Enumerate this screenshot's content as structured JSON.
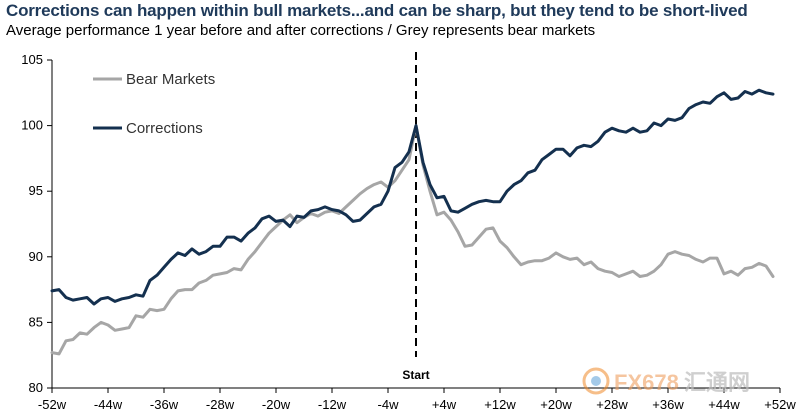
{
  "title": "Corrections can happen within bull markets...and can be sharp, but they tend to be short-lived",
  "subtitle": "Average performance 1 year before and after corrections / Grey represents bear markets",
  "watermark": {
    "brand": "FX678",
    "cn": "汇通网"
  },
  "chart_data": {
    "type": "line",
    "title": "Corrections can happen within bull markets...and can be sharp, but they tend to be short-lived",
    "subtitle": "Average performance 1 year before and after corrections / Grey represents bear markets",
    "xlabel": "",
    "ylabel": "",
    "ylim": [
      80,
      105
    ],
    "xlim": [
      -52,
      52
    ],
    "yticks": [
      80,
      85,
      90,
      95,
      100,
      105
    ],
    "xticks": [
      -52,
      -44,
      -36,
      -28,
      -20,
      -12,
      -4,
      4,
      12,
      20,
      28,
      36,
      44,
      52
    ],
    "xtick_labels": [
      "-52w",
      "-44w",
      "-36w",
      "-28w",
      "-20w",
      "-12w",
      "-4w",
      "+4w",
      "+12w",
      "+20w",
      "+28w",
      "+36w",
      "+44w",
      "+52w"
    ],
    "vline": {
      "x": 0,
      "label": "Start"
    },
    "grid": false,
    "legend": "top-left",
    "series": [
      {
        "name": "Bear Markets",
        "color": "#a6a6a6",
        "points": [
          [
            -52,
            82.7
          ],
          [
            -51,
            82.6
          ],
          [
            -50,
            83.6
          ],
          [
            -49,
            83.7
          ],
          [
            -48,
            84.2
          ],
          [
            -47,
            84.1
          ],
          [
            -46,
            84.6
          ],
          [
            -45,
            85.0
          ],
          [
            -44,
            84.8
          ],
          [
            -43,
            84.4
          ],
          [
            -42,
            84.5
          ],
          [
            -41,
            84.6
          ],
          [
            -40,
            85.5
          ],
          [
            -39,
            85.4
          ],
          [
            -38,
            86.0
          ],
          [
            -37,
            85.9
          ],
          [
            -36,
            86.0
          ],
          [
            -35,
            86.8
          ],
          [
            -34,
            87.4
          ],
          [
            -33,
            87.5
          ],
          [
            -32,
            87.5
          ],
          [
            -31,
            88.0
          ],
          [
            -30,
            88.2
          ],
          [
            -29,
            88.6
          ],
          [
            -28,
            88.7
          ],
          [
            -27,
            88.8
          ],
          [
            -26,
            89.1
          ],
          [
            -25,
            89.0
          ],
          [
            -24,
            89.8
          ],
          [
            -23,
            90.4
          ],
          [
            -22,
            91.1
          ],
          [
            -21,
            91.8
          ],
          [
            -20,
            92.3
          ],
          [
            -19,
            92.8
          ],
          [
            -18,
            93.2
          ],
          [
            -17,
            92.6
          ],
          [
            -16,
            93.0
          ],
          [
            -15,
            93.3
          ],
          [
            -14,
            93.1
          ],
          [
            -13,
            93.4
          ],
          [
            -12,
            93.5
          ],
          [
            -11,
            93.3
          ],
          [
            -10,
            93.8
          ],
          [
            -9,
            94.3
          ],
          [
            -8,
            94.8
          ],
          [
            -7,
            95.2
          ],
          [
            -6,
            95.5
          ],
          [
            -5,
            95.7
          ],
          [
            -4,
            95.3
          ],
          [
            -3,
            95.8
          ],
          [
            -2,
            96.6
          ],
          [
            -1,
            97.4
          ],
          [
            0,
            100.0
          ],
          [
            1,
            97.0
          ],
          [
            2,
            95.0
          ],
          [
            3,
            93.2
          ],
          [
            4,
            93.4
          ],
          [
            5,
            92.8
          ],
          [
            6,
            91.9
          ],
          [
            7,
            90.8
          ],
          [
            8,
            90.9
          ],
          [
            9,
            91.5
          ],
          [
            10,
            92.1
          ],
          [
            11,
            92.2
          ],
          [
            12,
            91.2
          ],
          [
            13,
            90.7
          ],
          [
            14,
            90.0
          ],
          [
            15,
            89.4
          ],
          [
            16,
            89.6
          ],
          [
            17,
            89.7
          ],
          [
            18,
            89.7
          ],
          [
            19,
            89.9
          ],
          [
            20,
            90.3
          ],
          [
            21,
            90.0
          ],
          [
            22,
            89.8
          ],
          [
            23,
            89.9
          ],
          [
            24,
            89.4
          ],
          [
            25,
            89.6
          ],
          [
            26,
            89.1
          ],
          [
            27,
            88.9
          ],
          [
            28,
            88.8
          ],
          [
            29,
            88.5
          ],
          [
            30,
            88.7
          ],
          [
            31,
            88.9
          ],
          [
            32,
            88.5
          ],
          [
            33,
            88.6
          ],
          [
            34,
            88.9
          ],
          [
            35,
            89.4
          ],
          [
            36,
            90.2
          ],
          [
            37,
            90.4
          ],
          [
            38,
            90.2
          ],
          [
            39,
            90.1
          ],
          [
            40,
            89.8
          ],
          [
            41,
            89.6
          ],
          [
            42,
            89.9
          ],
          [
            43,
            89.9
          ],
          [
            44,
            88.7
          ],
          [
            45,
            88.9
          ],
          [
            46,
            88.6
          ],
          [
            47,
            89.1
          ],
          [
            48,
            89.2
          ],
          [
            49,
            89.5
          ],
          [
            50,
            89.3
          ],
          [
            51,
            88.5
          ]
        ]
      },
      {
        "name": "Corrections",
        "color": "#14304f",
        "points": [
          [
            -52,
            87.4
          ],
          [
            -51,
            87.5
          ],
          [
            -50,
            86.9
          ],
          [
            -49,
            86.7
          ],
          [
            -48,
            86.8
          ],
          [
            -47,
            86.9
          ],
          [
            -46,
            86.4
          ],
          [
            -45,
            86.8
          ],
          [
            -44,
            86.9
          ],
          [
            -43,
            86.6
          ],
          [
            -42,
            86.8
          ],
          [
            -41,
            86.9
          ],
          [
            -40,
            87.1
          ],
          [
            -39,
            87.0
          ],
          [
            -38,
            88.2
          ],
          [
            -37,
            88.6
          ],
          [
            -36,
            89.2
          ],
          [
            -35,
            89.8
          ],
          [
            -34,
            90.3
          ],
          [
            -33,
            90.1
          ],
          [
            -32,
            90.6
          ],
          [
            -31,
            90.2
          ],
          [
            -30,
            90.4
          ],
          [
            -29,
            90.8
          ],
          [
            -28,
            90.8
          ],
          [
            -27,
            91.5
          ],
          [
            -26,
            91.5
          ],
          [
            -25,
            91.2
          ],
          [
            -24,
            91.8
          ],
          [
            -23,
            92.2
          ],
          [
            -22,
            92.9
          ],
          [
            -21,
            93.1
          ],
          [
            -20,
            92.7
          ],
          [
            -19,
            92.8
          ],
          [
            -18,
            92.3
          ],
          [
            -17,
            93.1
          ],
          [
            -16,
            93.0
          ],
          [
            -15,
            93.5
          ],
          [
            -14,
            93.6
          ],
          [
            -13,
            93.8
          ],
          [
            -12,
            93.6
          ],
          [
            -11,
            93.5
          ],
          [
            -10,
            93.2
          ],
          [
            -9,
            92.7
          ],
          [
            -8,
            92.8
          ],
          [
            -7,
            93.3
          ],
          [
            -6,
            93.8
          ],
          [
            -5,
            94.0
          ],
          [
            -4,
            95.0
          ],
          [
            -3,
            96.8
          ],
          [
            -2,
            97.2
          ],
          [
            -1,
            98.0
          ],
          [
            0,
            100.0
          ],
          [
            1,
            97.2
          ],
          [
            2,
            95.5
          ],
          [
            3,
            94.5
          ],
          [
            4,
            94.6
          ],
          [
            5,
            93.5
          ],
          [
            6,
            93.4
          ],
          [
            7,
            93.7
          ],
          [
            8,
            94.0
          ],
          [
            9,
            94.2
          ],
          [
            10,
            94.3
          ],
          [
            11,
            94.2
          ],
          [
            12,
            94.2
          ],
          [
            13,
            95.0
          ],
          [
            14,
            95.5
          ],
          [
            15,
            95.8
          ],
          [
            16,
            96.4
          ],
          [
            17,
            96.6
          ],
          [
            18,
            97.4
          ],
          [
            19,
            97.8
          ],
          [
            20,
            98.2
          ],
          [
            21,
            98.2
          ],
          [
            22,
            97.7
          ],
          [
            23,
            98.3
          ],
          [
            24,
            98.5
          ],
          [
            25,
            98.4
          ],
          [
            26,
            98.8
          ],
          [
            27,
            99.5
          ],
          [
            28,
            99.8
          ],
          [
            29,
            99.6
          ],
          [
            30,
            99.5
          ],
          [
            31,
            99.8
          ],
          [
            32,
            99.5
          ],
          [
            33,
            99.6
          ],
          [
            34,
            100.2
          ],
          [
            35,
            100.0
          ],
          [
            36,
            100.5
          ],
          [
            37,
            100.4
          ],
          [
            38,
            100.6
          ],
          [
            39,
            101.3
          ],
          [
            40,
            101.6
          ],
          [
            41,
            101.8
          ],
          [
            42,
            101.7
          ],
          [
            43,
            102.2
          ],
          [
            44,
            102.5
          ],
          [
            45,
            102.0
          ],
          [
            46,
            102.1
          ],
          [
            47,
            102.6
          ],
          [
            48,
            102.4
          ],
          [
            49,
            102.7
          ],
          [
            50,
            102.5
          ],
          [
            51,
            102.4
          ]
        ]
      }
    ]
  }
}
